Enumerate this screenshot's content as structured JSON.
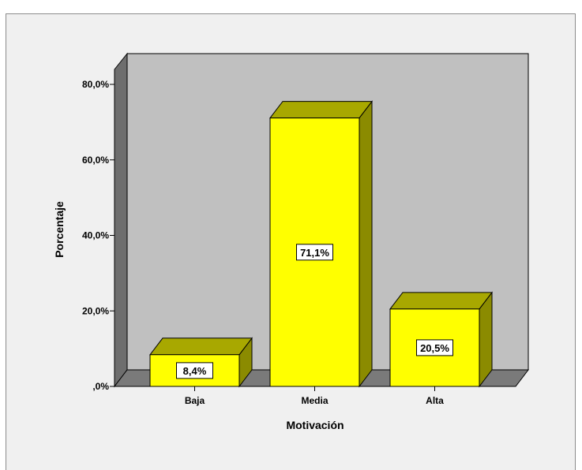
{
  "chart_data": {
    "type": "bar",
    "title": "",
    "categories": [
      "Baja",
      "Media",
      "Alta"
    ],
    "values": [
      8.4,
      71.1,
      20.5
    ],
    "data_labels": [
      "8,4%",
      "71,1%",
      "20,5%"
    ],
    "xlabel": "Motivación",
    "ylabel": "Porcentaje",
    "ylim": [
      0,
      80
    ],
    "yticks": [
      {
        "value": 0,
        "label": ",0%"
      },
      {
        "value": 20,
        "label": "20,0%"
      },
      {
        "value": 40,
        "label": "40,0%"
      },
      {
        "value": 60,
        "label": "60,0%"
      },
      {
        "value": 80,
        "label": "80,0%"
      }
    ],
    "style": "3d",
    "grid": false,
    "legend": "none",
    "colors": {
      "bar_face": "#ffff00",
      "bar_top": "#a8a800",
      "bar_side": "#8b8b00",
      "plot_back": "#c0c0c0",
      "wall_side": "#6e6e6e",
      "floor": "#7a7a7a",
      "frame_bg": "#f0f0f0"
    }
  }
}
